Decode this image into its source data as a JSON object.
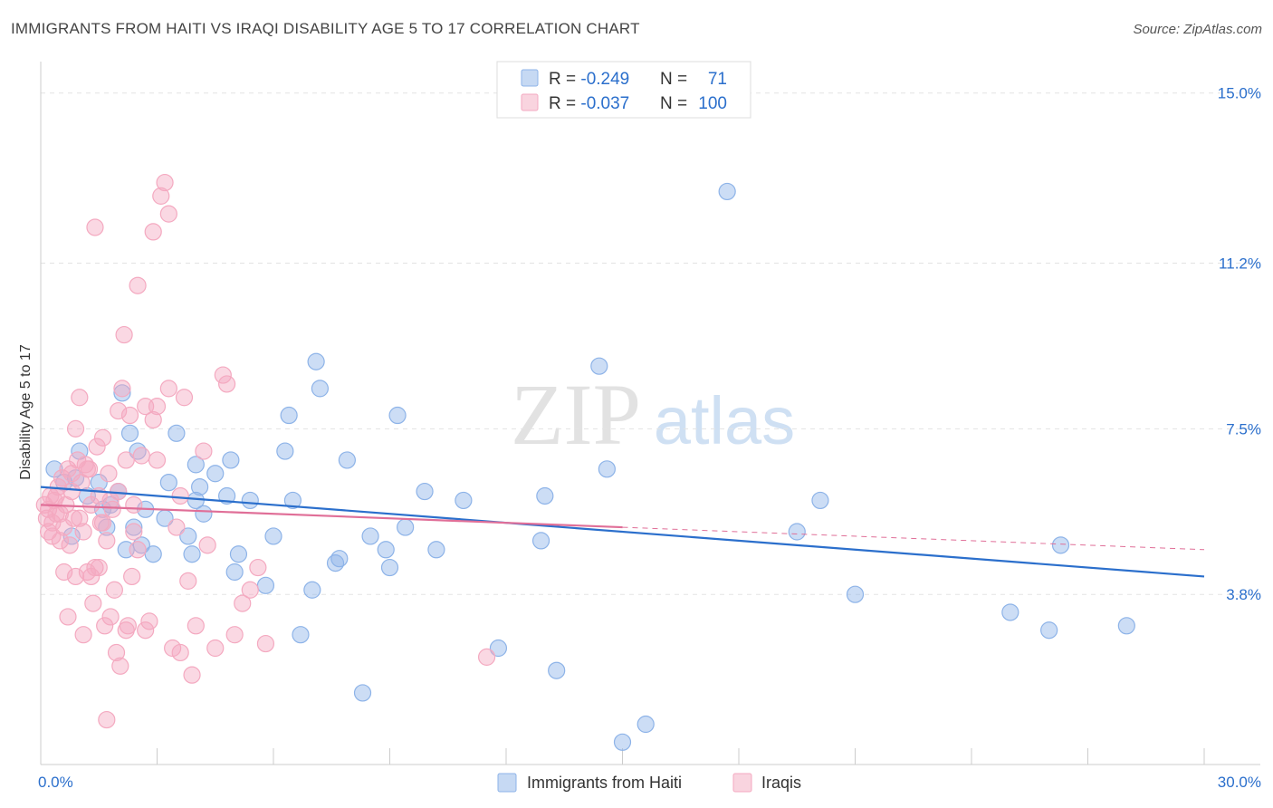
{
  "title": "IMMIGRANTS FROM HAITI VS IRAQI DISABILITY AGE 5 TO 17 CORRELATION CHART",
  "source": "Source: ZipAtlas.com",
  "watermark": {
    "zip": "ZIP",
    "atlas": "atlas"
  },
  "legend_top": [
    {
      "r_label": "R = ",
      "r_value": "-0.249",
      "n_label": "N = ",
      "n_value": "71",
      "color": "#8db3e8"
    },
    {
      "r_label": "R = ",
      "r_value": "-0.037",
      "n_label": "N = ",
      "n_value": "100",
      "color": "#f4a9c0"
    }
  ],
  "legend_bottom": [
    {
      "label": "Immigrants from Haiti",
      "color": "#8db3e8"
    },
    {
      "label": "Iraqis",
      "color": "#f4a9c0"
    }
  ],
  "chart_data": {
    "type": "scatter",
    "xlabel": "",
    "ylabel": "Disability Age 5 to 17",
    "xlim": [
      0,
      30
    ],
    "ylim": [
      0,
      15.5
    ],
    "x_tick_labels": [
      {
        "value": 0,
        "label": "0.0%"
      },
      {
        "value": 30,
        "label": "30.0%"
      }
    ],
    "y_tick_labels": [
      {
        "value": 3.8,
        "label": "3.8%"
      },
      {
        "value": 7.5,
        "label": "7.5%"
      },
      {
        "value": 11.2,
        "label": "11.2%"
      },
      {
        "value": 15.0,
        "label": "15.0%"
      }
    ],
    "grid": true,
    "legend_position": "top-center",
    "series": [
      {
        "name": "Immigrants from Haiti",
        "color": "#8db3e8",
        "line_color": "#2b6fcc",
        "trend": {
          "x": [
            0,
            30
          ],
          "y": [
            6.2,
            4.2
          ],
          "dashed_to": null
        },
        "points": [
          [
            0.35,
            6.6
          ],
          [
            0.6,
            6.3
          ],
          [
            0.8,
            5.1
          ],
          [
            1.0,
            7.0
          ],
          [
            1.2,
            6.0
          ],
          [
            1.5,
            6.3
          ],
          [
            1.6,
            5.7
          ],
          [
            1.7,
            5.3
          ],
          [
            1.8,
            5.8
          ],
          [
            2.0,
            6.1
          ],
          [
            2.1,
            8.3
          ],
          [
            2.2,
            4.8
          ],
          [
            2.3,
            7.4
          ],
          [
            2.5,
            7.0
          ],
          [
            2.6,
            4.9
          ],
          [
            2.7,
            5.7
          ],
          [
            2.9,
            4.7
          ],
          [
            3.2,
            5.5
          ],
          [
            3.3,
            6.3
          ],
          [
            3.5,
            7.4
          ],
          [
            3.8,
            5.1
          ],
          [
            4.0,
            5.9
          ],
          [
            4.0,
            6.7
          ],
          [
            4.1,
            6.2
          ],
          [
            4.2,
            5.6
          ],
          [
            4.5,
            6.5
          ],
          [
            4.8,
            6.0
          ],
          [
            5.0,
            4.3
          ],
          [
            5.1,
            4.7
          ],
          [
            5.4,
            5.9
          ],
          [
            6.0,
            5.1
          ],
          [
            5.8,
            4.0
          ],
          [
            6.3,
            7.0
          ],
          [
            6.4,
            7.8
          ],
          [
            6.5,
            5.9
          ],
          [
            7.1,
            9.0
          ],
          [
            7.2,
            8.4
          ],
          [
            7.6,
            4.5
          ],
          [
            7.7,
            4.6
          ],
          [
            7.9,
            6.8
          ],
          [
            8.5,
            5.1
          ],
          [
            8.9,
            4.8
          ],
          [
            9.2,
            7.8
          ],
          [
            9.4,
            5.3
          ],
          [
            9.9,
            6.1
          ],
          [
            10.2,
            4.8
          ],
          [
            10.9,
            5.9
          ],
          [
            11.8,
            2.6
          ],
          [
            12.9,
            5.0
          ],
          [
            13.0,
            6.0
          ],
          [
            13.3,
            2.1
          ],
          [
            14.4,
            8.9
          ],
          [
            14.6,
            6.6
          ],
          [
            15.6,
            0.9
          ],
          [
            17.7,
            12.8
          ],
          [
            19.5,
            5.2
          ],
          [
            20.1,
            5.9
          ],
          [
            21.0,
            3.8
          ],
          [
            25.0,
            3.4
          ],
          [
            26.0,
            3.0
          ],
          [
            26.3,
            4.9
          ],
          [
            28.0,
            3.1
          ],
          [
            8.3,
            1.6
          ],
          [
            7.0,
            3.9
          ],
          [
            6.7,
            2.9
          ],
          [
            9.0,
            4.4
          ],
          [
            3.9,
            4.7
          ],
          [
            4.9,
            6.8
          ],
          [
            2.4,
            5.3
          ],
          [
            0.9,
            6.4
          ],
          [
            15.0,
            0.5
          ]
        ]
      },
      {
        "name": "Iraqis",
        "color": "#f4a9c0",
        "line_color": "#e06f98",
        "trend": {
          "x": [
            0,
            15
          ],
          "y": [
            5.8,
            5.3
          ],
          "dashed_to": [
            30,
            4.8
          ]
        },
        "points": [
          [
            0.1,
            5.8
          ],
          [
            0.15,
            5.5
          ],
          [
            0.2,
            5.7
          ],
          [
            0.25,
            6.0
          ],
          [
            0.3,
            5.4
          ],
          [
            0.35,
            5.9
          ],
          [
            0.4,
            5.6
          ],
          [
            0.45,
            6.2
          ],
          [
            0.5,
            5.0
          ],
          [
            0.55,
            6.4
          ],
          [
            0.6,
            5.3
          ],
          [
            0.65,
            5.8
          ],
          [
            0.7,
            6.6
          ],
          [
            0.75,
            4.9
          ],
          [
            0.8,
            6.1
          ],
          [
            0.85,
            5.5
          ],
          [
            0.9,
            7.5
          ],
          [
            0.95,
            6.8
          ],
          [
            1.0,
            8.2
          ],
          [
            1.05,
            6.3
          ],
          [
            1.1,
            5.2
          ],
          [
            1.15,
            6.7
          ],
          [
            1.2,
            4.3
          ],
          [
            1.25,
            6.6
          ],
          [
            1.3,
            5.8
          ],
          [
            1.35,
            3.6
          ],
          [
            1.4,
            4.4
          ],
          [
            1.45,
            7.1
          ],
          [
            1.5,
            6.0
          ],
          [
            1.55,
            5.4
          ],
          [
            1.6,
            7.3
          ],
          [
            1.65,
            3.1
          ],
          [
            1.7,
            5.0
          ],
          [
            1.75,
            6.5
          ],
          [
            1.8,
            3.3
          ],
          [
            1.85,
            5.7
          ],
          [
            1.9,
            3.9
          ],
          [
            1.95,
            2.5
          ],
          [
            2.0,
            6.1
          ],
          [
            2.05,
            2.2
          ],
          [
            2.1,
            8.4
          ],
          [
            2.15,
            9.6
          ],
          [
            2.2,
            6.8
          ],
          [
            2.25,
            3.1
          ],
          [
            2.3,
            7.8
          ],
          [
            2.35,
            4.2
          ],
          [
            2.4,
            5.2
          ],
          [
            2.5,
            4.8
          ],
          [
            2.6,
            6.9
          ],
          [
            2.7,
            8.0
          ],
          [
            2.8,
            3.2
          ],
          [
            2.9,
            7.7
          ],
          [
            3.0,
            8.0
          ],
          [
            3.1,
            12.7
          ],
          [
            3.2,
            13.0
          ],
          [
            3.3,
            8.4
          ],
          [
            3.4,
            2.6
          ],
          [
            3.5,
            5.3
          ],
          [
            3.6,
            6.0
          ],
          [
            3.7,
            8.2
          ],
          [
            3.8,
            4.1
          ],
          [
            3.9,
            2.0
          ],
          [
            4.0,
            3.1
          ],
          [
            4.2,
            7.0
          ],
          [
            4.3,
            4.9
          ],
          [
            4.5,
            2.6
          ],
          [
            4.7,
            8.7
          ],
          [
            4.8,
            8.5
          ],
          [
            5.0,
            2.9
          ],
          [
            5.2,
            3.6
          ],
          [
            5.4,
            3.9
          ],
          [
            5.6,
            4.4
          ],
          [
            5.8,
            2.7
          ],
          [
            3.3,
            12.3
          ],
          [
            2.9,
            11.9
          ],
          [
            2.5,
            10.7
          ],
          [
            1.4,
            12.0
          ],
          [
            1.1,
            2.9
          ],
          [
            1.7,
            1.0
          ],
          [
            0.7,
            3.3
          ],
          [
            0.9,
            4.2
          ],
          [
            1.5,
            4.4
          ],
          [
            2.2,
            3.0
          ],
          [
            1.8,
            5.9
          ],
          [
            0.4,
            6.0
          ],
          [
            0.5,
            5.6
          ],
          [
            0.6,
            4.3
          ],
          [
            0.3,
            5.1
          ],
          [
            1.0,
            5.5
          ],
          [
            1.2,
            6.6
          ],
          [
            11.5,
            2.4
          ],
          [
            2.0,
            7.9
          ],
          [
            0.8,
            6.5
          ],
          [
            1.3,
            4.2
          ],
          [
            3.6,
            2.5
          ],
          [
            2.7,
            3.0
          ],
          [
            0.2,
            5.2
          ],
          [
            1.6,
            5.4
          ],
          [
            3.0,
            6.8
          ],
          [
            2.4,
            5.8
          ]
        ]
      }
    ]
  }
}
